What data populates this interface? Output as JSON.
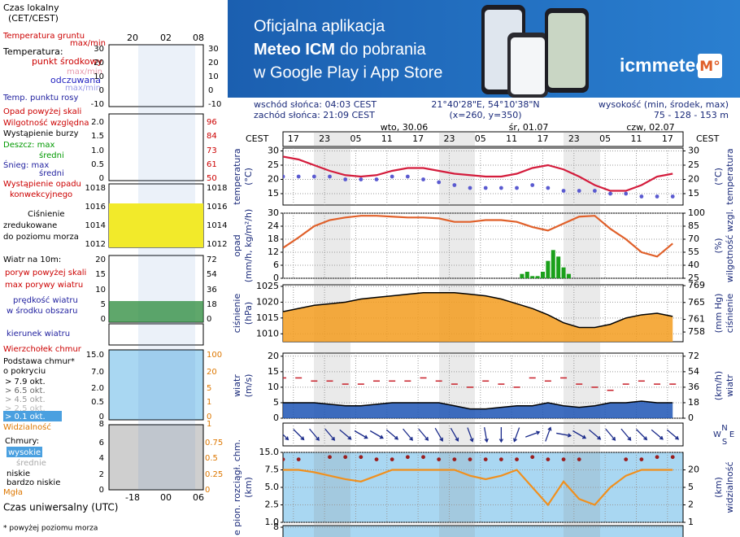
{
  "banner": {
    "line1": "Oficjalna aplikacja",
    "line2_bold": "Meteo ICM",
    "line2": "do pobrania",
    "line3": "w Google Play i App Store",
    "logo": "icmmeteo",
    "logo_badge": "M°"
  },
  "info": {
    "sunrise": "wschód słońca: 04:03 CEST",
    "sunset": "zachód słońca: 21:09 CEST",
    "coords": "21°40'28\"E, 54°10'38\"N",
    "grid": "(x=260,  y=350)",
    "elevation_label": "wysokość (min, środek, max)",
    "elevation": "75 - 128 - 153 m"
  },
  "legend": {
    "local_time": "Czas lokalny",
    "local_time_zone": "(CET/CEST)",
    "local_hours": [
      "20",
      "02",
      "08"
    ],
    "ground_temp": "Temperatura gruntu",
    "ground_temp_minmax": "max/min",
    "temp": "Temperatura:",
    "temp_mid": "punkt środkowy",
    "temp_minmax": "max/min",
    "feels": "odczuwana",
    "feels_minmax": "max/min",
    "dew": "Temp. punktu rosy",
    "temp_ticks": [
      30,
      20,
      10,
      0,
      -10
    ],
    "precip_over": "Opad powyżej skali",
    "humidity": "Wilgotność względna",
    "storm": "Wystąpienie burzy",
    "rain_max": "Deszcz: max",
    "rain_mean": "średni",
    "snow_max": "Śnieg: max",
    "snow_mean": "średni",
    "convective": [
      "Wystąpienie opadu",
      "konwekcyjnego"
    ],
    "precip_ticks": [
      "2.0",
      "1.5",
      "1.0",
      "0.5",
      "0"
    ],
    "humidity_ticks": [
      96,
      84,
      73,
      61,
      50
    ],
    "pressure_ticks": [
      1018,
      1016,
      1014,
      1012
    ],
    "pressure": [
      "Ciśnienie",
      "zredukowane",
      "do poziomu morza"
    ],
    "wind": "Wiatr na 10m:",
    "wind_ticks": [
      20,
      15,
      10,
      5,
      0
    ],
    "wind_kmh_ticks": [
      72,
      54,
      36,
      18,
      0
    ],
    "gust_over": "poryw powyżej skali",
    "gust_max": "max porywy wiatru",
    "wind_speed": "prędkość wiatru",
    "wind_area": "w środku obszaru",
    "wind_dir": "kierunek wiatru",
    "cloud_top": "Wierzchołek chmur",
    "cloud_base": "Podstawa chmur*",
    "cover": "o pokryciu",
    "okt": [
      "> 7.9 okt.",
      "> 6.5 okt.",
      "> 4.5 okt.",
      "> 2.5 okt.",
      "> 0.1 okt."
    ],
    "cloud_ticks": [
      "15.0",
      "7.0",
      "2.0",
      "0.5",
      "0"
    ],
    "cloud_vis_ticks": [
      100,
      20,
      5,
      1,
      0
    ],
    "visibility": "Widzialność",
    "vis_ticks": [
      "8",
      "1"
    ],
    "clouds": "Chmury:",
    "high": "wysokie",
    "mid": "średnie",
    "low": "niskie",
    "very_low": "bardzo niskie",
    "fog": "Mgła",
    "cover_ticks": [
      6,
      4,
      2,
      0
    ],
    "fog_ticks": [
      "0.75",
      "0.5",
      "0.25",
      "0"
    ],
    "utc_hours": [
      "-18",
      "00",
      "06"
    ],
    "utc": "Czas uniwersalny (UTC)",
    "note": "* powyżej poziomu morza"
  },
  "chart_data": [
    {
      "type": "combo",
      "ylabel": [
        "temperatura",
        "(°C)"
      ],
      "y2label": [
        "(°C)",
        "temperatura"
      ],
      "xlabel": "CEST",
      "dates": [
        "wto, 30.06",
        "śr, 01.07",
        "czw, 02.07"
      ],
      "xlim": [
        15,
        92
      ],
      "xticks": [
        17,
        23,
        {
          "value": 29,
          "label": "05"
        },
        {
          "value": 35,
          "label": "11"
        },
        {
          "value": 41,
          "label": "17"
        },
        {
          "value": 47,
          "label": "23"
        },
        {
          "value": 53,
          "label": "05"
        },
        {
          "value": 59,
          "label": "11"
        },
        {
          "value": 65,
          "label": "17"
        },
        {
          "value": 71,
          "label": "23"
        },
        {
          "value": 77,
          "label": "05"
        },
        {
          "value": 83,
          "label": "11"
        },
        {
          "value": 89,
          "label": "17"
        }
      ],
      "x": [
        15,
        18,
        21,
        24,
        27,
        30,
        33,
        36,
        39,
        42,
        45,
        48,
        51,
        54,
        57,
        60,
        63,
        66,
        69,
        72,
        75,
        78,
        81,
        84,
        87,
        90
      ],
      "ylim": [
        11,
        31
      ],
      "yticks": [
        15,
        20,
        25,
        30
      ],
      "y2lim": [
        11,
        31
      ],
      "y2ticks": [
        15,
        20,
        25,
        30
      ],
      "series": [
        {
          "kind": "line",
          "color": "#d41c3c",
          "values": [
            28,
            27,
            25,
            23,
            21.5,
            21,
            21.5,
            23,
            24,
            24,
            23,
            22,
            21.5,
            21,
            21,
            22,
            24,
            25,
            23.5,
            21,
            18,
            16,
            16,
            18,
            21,
            22
          ]
        },
        {
          "kind": "dots",
          "color": "#5a5ad0",
          "values": [
            21,
            21,
            21,
            21,
            20,
            20,
            20,
            21,
            21,
            20,
            19,
            18,
            17,
            17,
            17,
            17,
            18,
            17,
            16,
            16,
            16,
            15,
            15,
            14,
            14,
            14
          ]
        }
      ]
    },
    {
      "type": "combo",
      "ylabel": [
        "opad",
        "(mm/h, kg/m²/h)"
      ],
      "y2label": [
        "(%)",
        "wilgotność wzgl."
      ],
      "x": [
        15,
        18,
        21,
        24,
        27,
        30,
        33,
        36,
        39,
        42,
        45,
        48,
        51,
        54,
        57,
        60,
        63,
        66,
        69,
        72,
        75,
        78,
        81,
        84,
        87,
        90
      ],
      "ylim": [
        0,
        30
      ],
      "yticks": [
        0,
        6,
        12,
        18,
        24,
        30
      ],
      "y2lim": [
        25,
        100
      ],
      "y2ticks": [
        25,
        40,
        55,
        70,
        85,
        100
      ],
      "series": [
        {
          "kind": "bar",
          "color": "#1aa01a",
          "x": [
            61,
            62,
            63,
            64,
            65,
            66,
            67,
            68,
            69,
            70
          ],
          "values": [
            2,
            3,
            1,
            1,
            3,
            8,
            13,
            10,
            5,
            2
          ]
        },
        {
          "kind": "line",
          "axis": "y2",
          "color": "#e0602a",
          "values": [
            60,
            72,
            85,
            92,
            95,
            97,
            97,
            96,
            95,
            95,
            94,
            90,
            90,
            92,
            92,
            90,
            84,
            80,
            88,
            96,
            97,
            82,
            70,
            55,
            50,
            65
          ]
        }
      ]
    },
    {
      "type": "combo",
      "ylabel": [
        "ciśnienie",
        "(hPa)"
      ],
      "y2label": [
        "(mm Hg)",
        "ciśnienie"
      ],
      "x": [
        15,
        18,
        21,
        24,
        27,
        30,
        33,
        36,
        39,
        42,
        45,
        48,
        51,
        54,
        57,
        60,
        63,
        66,
        69,
        72,
        75,
        78,
        81,
        84,
        87,
        90
      ],
      "ylim": [
        1007.5,
        1025.5
      ],
      "yticks": [
        1010,
        1015,
        1020,
        1025
      ],
      "y2lim": [
        755.7,
        769.2
      ],
      "y2ticks": [
        758,
        761,
        765,
        769
      ],
      "series": [
        {
          "kind": "area",
          "color": "#f39c1e",
          "values": [
            1017,
            1018,
            1019,
            1019.5,
            1020,
            1021,
            1021.5,
            1022,
            1022.5,
            1023,
            1023,
            1023,
            1022.5,
            1022,
            1021,
            1019.5,
            1018,
            1016,
            1013.5,
            1012,
            1012,
            1013,
            1015,
            1016,
            1016.5,
            1015.5
          ]
        }
      ]
    },
    {
      "type": "combo",
      "ylabel": [
        "wiatr",
        "(m/s)"
      ],
      "y2label": [
        "(km/h)",
        "wiatr"
      ],
      "x": [
        15,
        18,
        21,
        24,
        27,
        30,
        33,
        36,
        39,
        42,
        45,
        48,
        51,
        54,
        57,
        60,
        63,
        66,
        69,
        72,
        75,
        78,
        81,
        84,
        87,
        90
      ],
      "ylim": [
        0,
        21
      ],
      "yticks": [
        0,
        5,
        10,
        15,
        20
      ],
      "y2lim": [
        0,
        75.6
      ],
      "y2ticks": [
        0,
        18,
        36,
        54,
        72
      ],
      "series": [
        {
          "kind": "area",
          "color": "#1d55b5",
          "values": [
            5,
            5,
            5,
            4.5,
            4,
            4,
            4.5,
            5,
            5,
            5,
            5,
            4,
            3,
            3,
            3.5,
            4,
            4,
            5,
            4,
            3.5,
            4,
            5,
            5,
            5.5,
            5,
            5
          ]
        },
        {
          "kind": "dash",
          "color": "#c8202a",
          "values": [
            13,
            13,
            12,
            12,
            11,
            11,
            12,
            12,
            12,
            13,
            12,
            11,
            10,
            12,
            11,
            10,
            13,
            12,
            13,
            11,
            10,
            9,
            11,
            12,
            11,
            11
          ]
        }
      ]
    },
    {
      "type": "arrows",
      "compass": [
        "W",
        "N",
        "E",
        "S"
      ],
      "color": "#1a2a8a",
      "x": [
        15,
        18,
        21,
        24,
        27,
        30,
        33,
        36,
        39,
        42,
        45,
        48,
        51,
        54,
        57,
        60,
        63,
        66,
        69,
        72,
        75,
        78,
        81,
        84,
        87,
        90
      ],
      "values": [
        315,
        315,
        320,
        320,
        310,
        300,
        300,
        310,
        320,
        320,
        330,
        330,
        340,
        350,
        0,
        20,
        250,
        200,
        280,
        300,
        310,
        320,
        320,
        315,
        310,
        310
      ]
    },
    {
      "type": "combo",
      "scale": "piecewise",
      "ylabel": [
        "e pion. rozciągł. chm.",
        "(km)"
      ],
      "y2label": [
        "(km)",
        "widzialność"
      ],
      "x": [
        15,
        18,
        21,
        24,
        27,
        30,
        33,
        36,
        39,
        42,
        45,
        48,
        51,
        54,
        57,
        60,
        63,
        66,
        69,
        72,
        75,
        78,
        81,
        84,
        87,
        90
      ],
      "ylim": [
        1,
        15
      ],
      "yticks": [
        {
          "value": 1,
          "label": "1.0"
        },
        2.5,
        {
          "value": 5,
          "label": "5.0"
        },
        7.5,
        {
          "value": 15,
          "label": "15.0"
        }
      ],
      "y2lim": [
        1,
        20
      ],
      "y2ticks": [
        1,
        2,
        5,
        20
      ],
      "series": [
        {
          "kind": "line",
          "axis": "y2",
          "color": "#f0901e",
          "values": [
            20,
            20,
            18,
            15,
            12,
            10,
            15,
            20,
            20,
            20,
            20,
            20,
            15,
            12,
            15,
            20,
            5,
            2,
            10,
            3,
            2,
            5,
            15,
            20,
            20,
            20
          ]
        },
        {
          "kind": "dots",
          "color": "#9a1e1e",
          "values": [
            12,
            12,
            null,
            13,
            13,
            13,
            12,
            12,
            13,
            13,
            12,
            12,
            12,
            12,
            12,
            12,
            13,
            12,
            12,
            12,
            null,
            null,
            12,
            12,
            13,
            13
          ]
        }
      ]
    },
    {
      "type": "combo",
      "ylim": [
        0,
        8
      ],
      "yticks": [
        8
      ],
      "series": []
    }
  ]
}
